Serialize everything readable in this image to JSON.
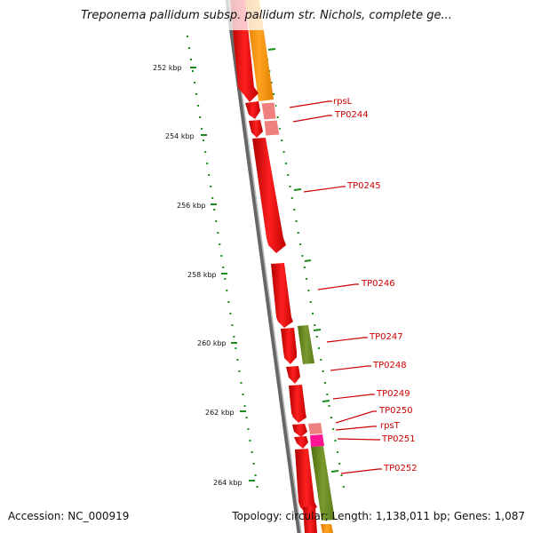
{
  "title": "Treponema pallidum subsp. pallidum str. Nichols, complete ge...",
  "footer": {
    "accession": "Accession: NC_000919",
    "stats": "Topology: circular; Length: 1,138,011 bp; Genes: 1,087"
  },
  "scale": {
    "labels": [
      "252 kbp",
      "254 kbp",
      "256 kbp",
      "258 kbp",
      "260 kbp",
      "262 kbp",
      "264 kbp"
    ]
  },
  "genes": [
    {
      "label": "rpsL"
    },
    {
      "label": "TP0244"
    },
    {
      "label": "TP0245"
    },
    {
      "label": "TP0246"
    },
    {
      "label": "TP0247"
    },
    {
      "label": "TP0248"
    },
    {
      "label": "TP0249"
    },
    {
      "label": "TP0250"
    },
    {
      "label": "rpsT"
    },
    {
      "label": "TP0251"
    },
    {
      "label": "TP0252"
    }
  ],
  "colors": {
    "cds_red": "#ff0000",
    "cds_salmon": "#f08080",
    "orange_track": "#ff9900",
    "green_track": "#6b8e23",
    "pink": "#ff1493",
    "label_red": "#cc0000",
    "tick_green": "#1a8a1a",
    "backbone": "#888888"
  }
}
